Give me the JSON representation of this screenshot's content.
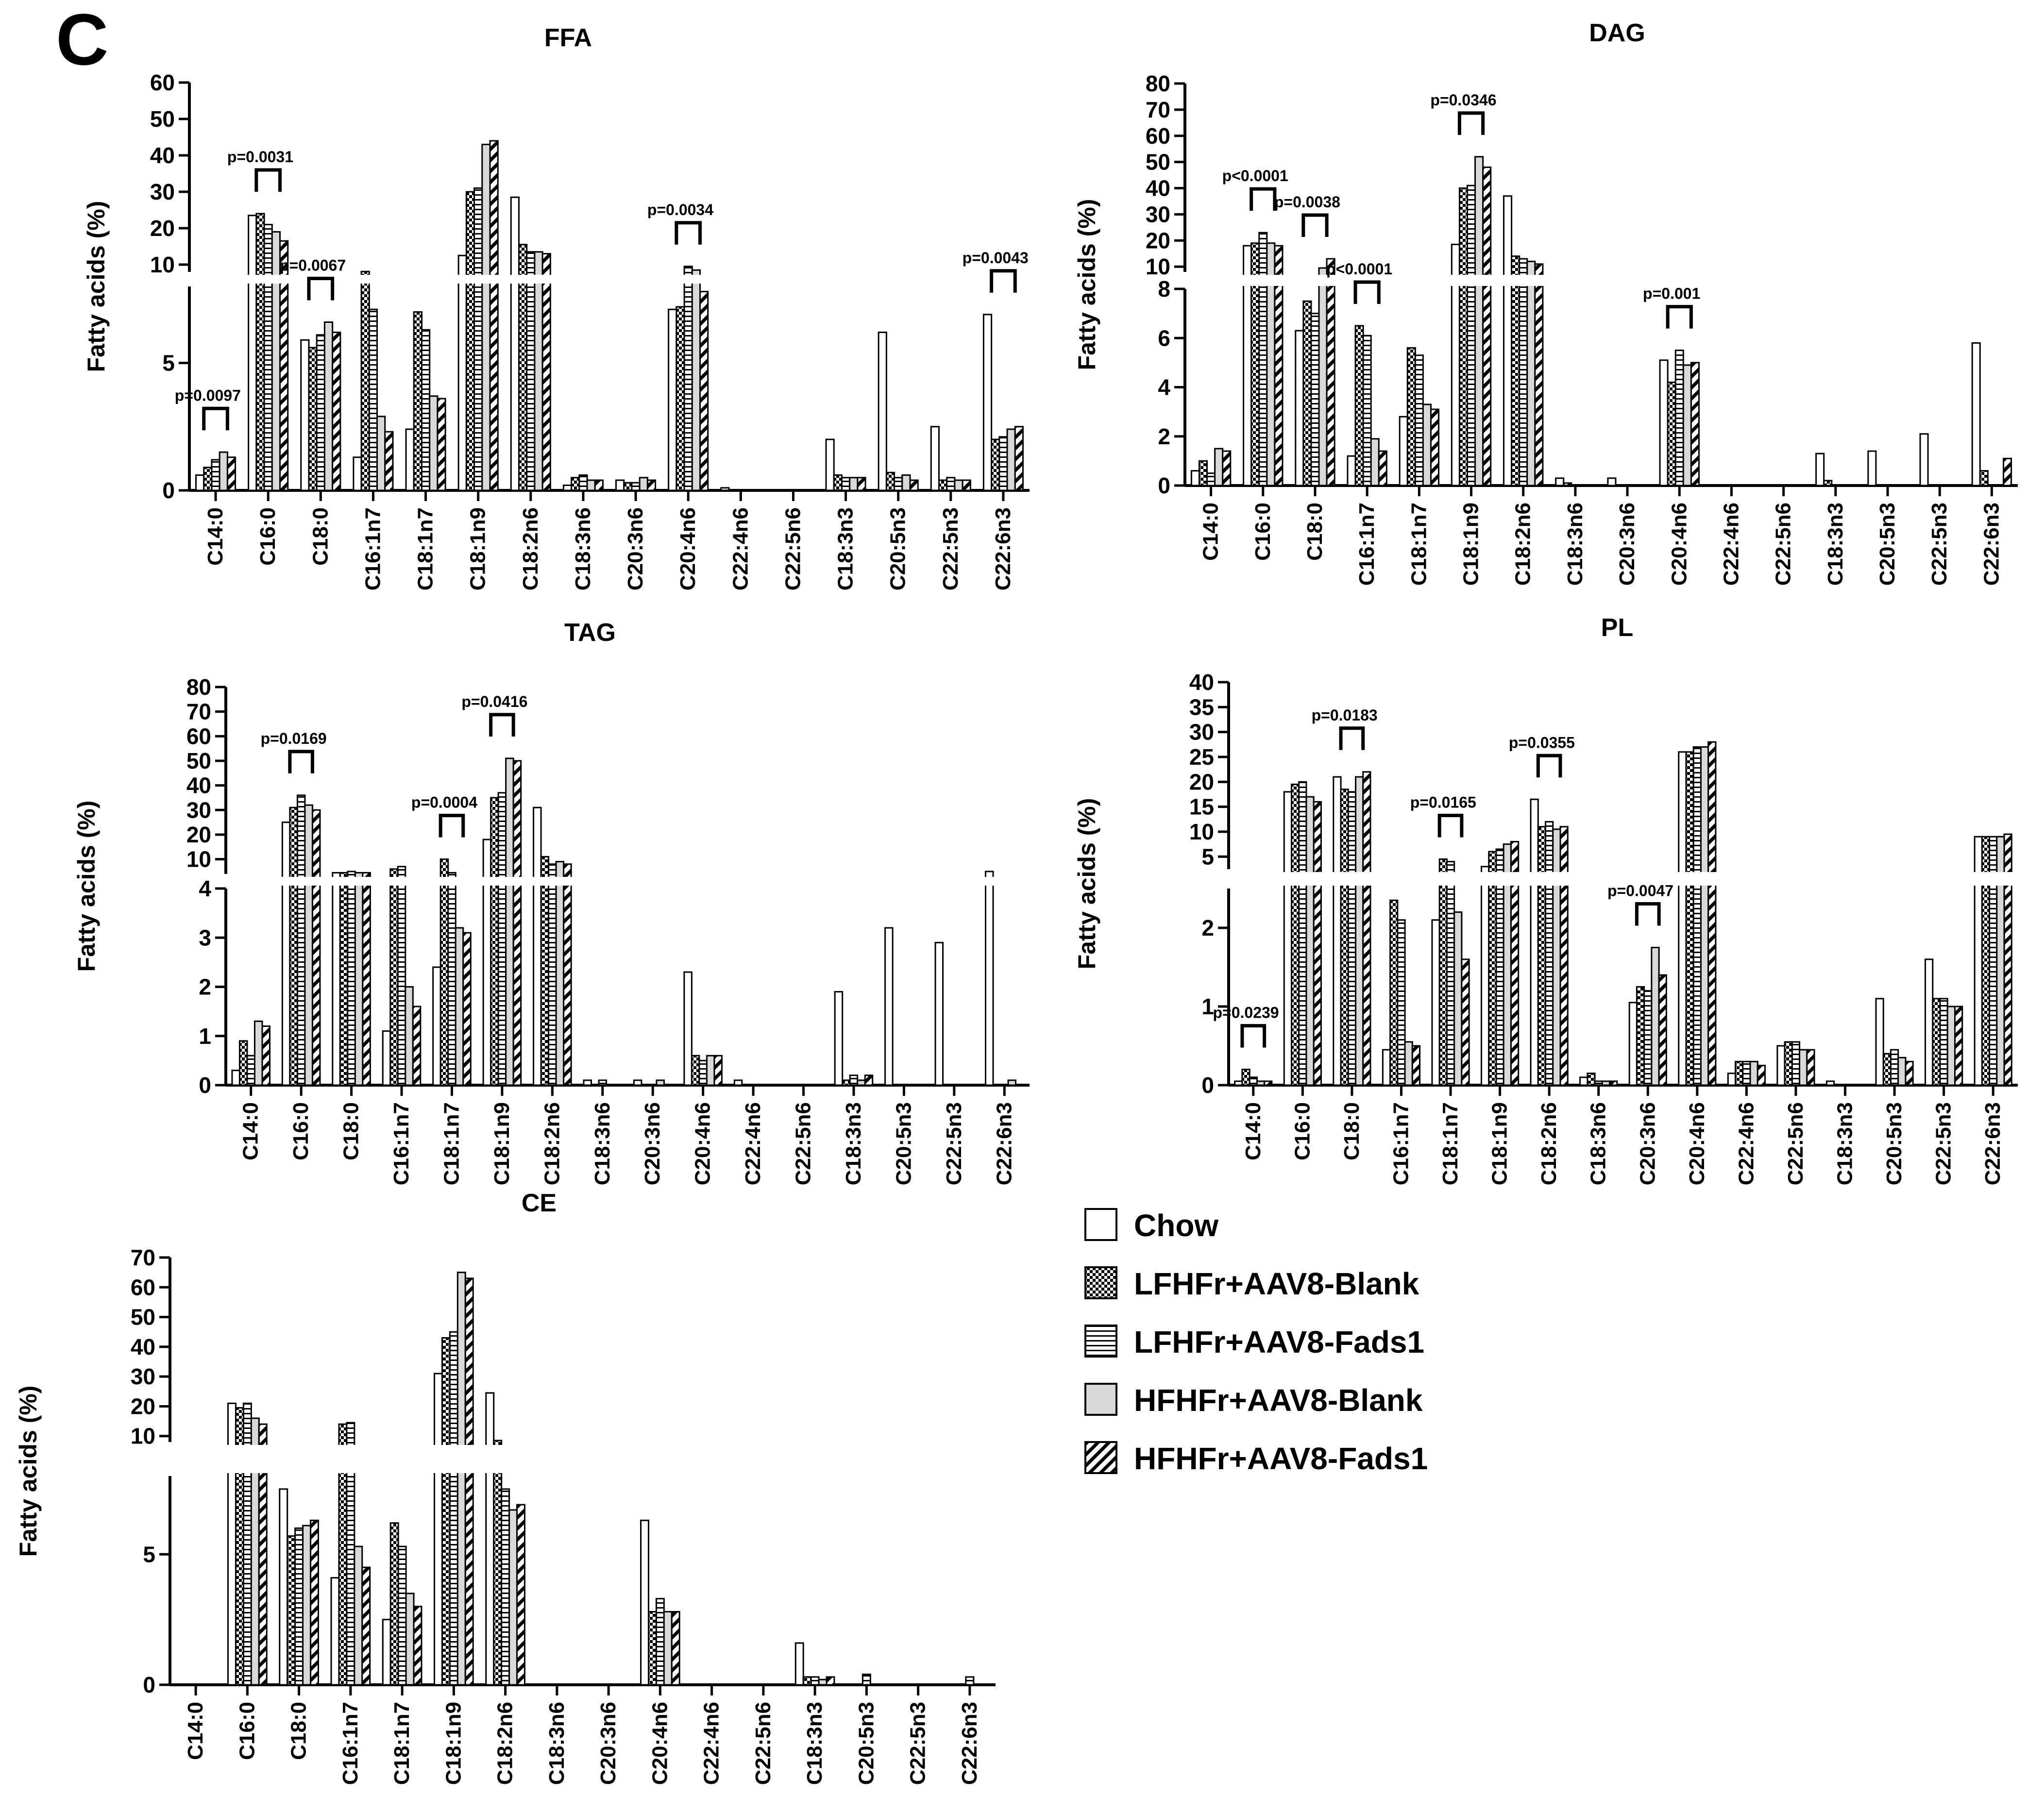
{
  "figure_label": "C",
  "legend": [
    {
      "name": "Chow",
      "pattern": "open"
    },
    {
      "name": "LFHFr+AAV8-Blank",
      "pattern": "checker"
    },
    {
      "name": "LFHFr+AAV8-Fads1",
      "pattern": "hstripe"
    },
    {
      "name": "HFHFr+AAV8-Blank",
      "pattern": "grey"
    },
    {
      "name": "HFHFr+AAV8-Fads1",
      "pattern": "diag"
    }
  ],
  "colors": {
    "ink": "#000000",
    "grey_fill": "#d9d9d9",
    "background": "#ffffff"
  },
  "chart_data": [
    {
      "type": "bar",
      "title": "FFA",
      "ylabel": "Fatty acids (%)",
      "categories": [
        "C14:0",
        "C16:0",
        "C18:0",
        "C16:1n7",
        "C18:1n7",
        "C18:1n9",
        "C18:2n6",
        "C18:3n6",
        "C20:3n6",
        "C20:4n6",
        "C22:4n6",
        "C22:5n6",
        "C18:3n3",
        "C20:5n3",
        "C22:5n3",
        "C22:6n3"
      ],
      "axis_break": {
        "lower_range": [
          0,
          8
        ],
        "lower_ticks": [
          "0",
          "5"
        ],
        "upper_range": [
          8,
          60
        ],
        "upper_ticks": [
          "10",
          "20",
          "30",
          "40",
          "50",
          "60"
        ]
      },
      "series": [
        {
          "name": "Chow",
          "values": [
            0.6,
            23.5,
            5.9,
            1.3,
            2.4,
            12.5,
            28.5,
            0.2,
            0.4,
            7.1,
            0.1,
            0,
            2.0,
            6.2,
            2.5,
            6.9
          ]
        },
        {
          "name": "LFHFr+AAV8-Blank",
          "values": [
            0.9,
            24,
            5.6,
            8.1,
            7.0,
            30,
            15.5,
            0.5,
            0.3,
            7.2,
            0,
            0,
            0.6,
            0.7,
            0.4,
            2.0
          ]
        },
        {
          "name": "LFHFr+AAV8-Fads1",
          "values": [
            1.2,
            21,
            6.1,
            7.1,
            6.3,
            31,
            13.5,
            0.6,
            0.3,
            9.5,
            0,
            0,
            0.5,
            0.5,
            0.5,
            2.1
          ]
        },
        {
          "name": "HFHFr+AAV8-Blank",
          "values": [
            1.5,
            19,
            6.6,
            2.9,
            3.7,
            43,
            13.5,
            0.4,
            0.5,
            8.5,
            0,
            0,
            0.5,
            0.6,
            0.4,
            2.4
          ]
        },
        {
          "name": "HFHFr+AAV8-Fads1",
          "values": [
            1.3,
            16.5,
            6.2,
            2.3,
            3.6,
            44,
            13,
            0.4,
            0.4,
            7.8,
            0,
            0,
            0.5,
            0.4,
            0.4,
            2.5
          ]
        }
      ],
      "annotations": [
        {
          "category": "C14:0",
          "text": "p=0.0097"
        },
        {
          "category": "C16:0",
          "text": "p=0.0031"
        },
        {
          "category": "C18:0",
          "text": "p=0.0067"
        },
        {
          "category": "C20:4n6",
          "text": "p=0.0034"
        },
        {
          "category": "C22:6n3",
          "text": "p=0.0043"
        }
      ]
    },
    {
      "type": "bar",
      "title": "DAG",
      "ylabel": "Fatty acids (%)",
      "categories": [
        "C14:0",
        "C16:0",
        "C18:0",
        "C16:1n7",
        "C18:1n7",
        "C18:1n9",
        "C18:2n6",
        "C18:3n6",
        "C20:3n6",
        "C20:4n6",
        "C22:4n6",
        "C22:5n6",
        "C18:3n3",
        "C20:5n3",
        "C22:5n3",
        "C22:6n3"
      ],
      "axis_break": {
        "lower_range": [
          0,
          8
        ],
        "lower_ticks": [
          "0",
          "2",
          "4",
          "6",
          "8"
        ],
        "upper_range": [
          8,
          80
        ],
        "upper_ticks": [
          "10",
          "20",
          "30",
          "40",
          "50",
          "60",
          "70",
          "80"
        ]
      },
      "series": [
        {
          "name": "Chow",
          "values": [
            0.6,
            18,
            6.3,
            1.2,
            2.8,
            18.5,
            37,
            0.3,
            0.3,
            5.1,
            0,
            0,
            1.3,
            1.4,
            2.1,
            5.8
          ]
        },
        {
          "name": "LFHFr+AAV8-Blank",
          "values": [
            1.0,
            19,
            7.5,
            6.5,
            5.6,
            40,
            14,
            0.1,
            0,
            4.2,
            0,
            0,
            0.2,
            0,
            0,
            0.6
          ]
        },
        {
          "name": "LFHFr+AAV8-Fads1",
          "values": [
            0.5,
            23,
            7.0,
            6.1,
            5.3,
            41,
            13,
            0,
            0,
            5.5,
            0,
            0,
            0,
            0,
            0,
            0
          ]
        },
        {
          "name": "HFHFr+AAV8-Blank",
          "values": [
            1.5,
            19,
            9.5,
            1.9,
            3.3,
            52,
            12,
            0,
            0,
            4.9,
            0,
            0,
            0,
            0,
            0,
            0
          ]
        },
        {
          "name": "HFHFr+AAV8-Fads1",
          "values": [
            1.4,
            18,
            13,
            1.4,
            3.1,
            48,
            11,
            0,
            0,
            5.0,
            0,
            0,
            0,
            0,
            0,
            1.1
          ]
        }
      ],
      "annotations": [
        {
          "category": "C16:0",
          "text": "p<0.0001"
        },
        {
          "category": "C18:0",
          "text": "p=0.0038"
        },
        {
          "category": "C16:1n7",
          "text": "p<0.0001"
        },
        {
          "category": "C18:1n9",
          "text": "p=0.0346"
        },
        {
          "category": "C20:4n6",
          "text": "p=0.001"
        }
      ]
    },
    {
      "type": "bar",
      "title": "TAG",
      "ylabel": "Fatty acids (%)",
      "categories": [
        "C14:0",
        "C16:0",
        "C18:0",
        "C16:1n7",
        "C18:1n7",
        "C18:1n9",
        "C18:2n6",
        "C18:3n6",
        "C20:3n6",
        "C20:4n6",
        "C22:4n6",
        "C22:5n6",
        "C18:3n3",
        "C20:5n3",
        "C22:5n3",
        "C22:6n3"
      ],
      "axis_break": {
        "lower_range": [
          0,
          4
        ],
        "lower_ticks": [
          "0",
          "1",
          "2",
          "3",
          "4"
        ],
        "upper_range": [
          4,
          80
        ],
        "upper_ticks": [
          "10",
          "20",
          "30",
          "40",
          "50",
          "60",
          "70",
          "80"
        ]
      },
      "series": [
        {
          "name": "Chow",
          "values": [
            0.3,
            25,
            4.5,
            1.1,
            2.4,
            18,
            31,
            0.1,
            0.1,
            2.3,
            0.1,
            0,
            1.9,
            3.2,
            2.9,
            5.0
          ]
        },
        {
          "name": "LFHFr+AAV8-Blank",
          "values": [
            0.9,
            31,
            4.5,
            6.0,
            10,
            35,
            11,
            0,
            0,
            0.6,
            0,
            0,
            0.1,
            0,
            0,
            0
          ]
        },
        {
          "name": "LFHFr+AAV8-Fads1",
          "values": [
            0.6,
            36,
            5.0,
            7.0,
            4.5,
            37,
            8,
            0.1,
            0,
            0.5,
            0,
            0,
            0.2,
            0,
            0,
            0
          ]
        },
        {
          "name": "HFHFr+AAV8-Blank",
          "values": [
            1.3,
            32,
            4.5,
            2.0,
            3.2,
            51,
            9,
            0,
            0.1,
            0.6,
            0,
            0,
            0.1,
            0,
            0,
            0.1
          ]
        },
        {
          "name": "HFHFr+AAV8-Fads1",
          "values": [
            1.2,
            30,
            4.5,
            1.6,
            3.1,
            50,
            8,
            0,
            0,
            0.6,
            0,
            0,
            0.2,
            0,
            0,
            0
          ]
        }
      ],
      "annotations": [
        {
          "category": "C16:0",
          "text": "p=0.0169"
        },
        {
          "category": "C18:1n7",
          "text": "p=0.0004"
        },
        {
          "category": "C18:1n9",
          "text": "p=0.0416"
        }
      ]
    },
    {
      "type": "bar",
      "title": "PL",
      "ylabel": "Fatty acids (%)",
      "categories": [
        "C14:0",
        "C16:0",
        "C18:0",
        "C16:1n7",
        "C18:1n7",
        "C18:1n9",
        "C18:2n6",
        "C18:3n6",
        "C20:3n6",
        "C20:4n6",
        "C22:4n6",
        "C22:5n6",
        "C18:3n3",
        "C20:5n3",
        "C22:5n3",
        "C22:6n3"
      ],
      "axis_break": {
        "lower_range": [
          0,
          2.5
        ],
        "lower_ticks": [
          "0",
          "1",
          "2"
        ],
        "upper_range": [
          2.5,
          40
        ],
        "upper_ticks": [
          "5",
          "10",
          "15",
          "20",
          "25",
          "30",
          "35",
          "40"
        ]
      },
      "series": [
        {
          "name": "Chow",
          "values": [
            0.05,
            18,
            21,
            0.45,
            2.1,
            3.0,
            16.5,
            0.1,
            1.05,
            26,
            0.15,
            0.5,
            0.05,
            1.1,
            1.6,
            9
          ]
        },
        {
          "name": "LFHFr+AAV8-Blank",
          "values": [
            0.2,
            19.5,
            18.5,
            2.35,
            4.5,
            6,
            11,
            0.15,
            1.25,
            26,
            0.3,
            0.55,
            0,
            0.4,
            1.1,
            9
          ]
        },
        {
          "name": "LFHFr+AAV8-Fads1",
          "values": [
            0.1,
            20,
            18,
            2.1,
            4,
            6.5,
            12,
            0.05,
            1.2,
            27,
            0.3,
            0.55,
            0,
            0.45,
            1.1,
            9
          ]
        },
        {
          "name": "HFHFr+AAV8-Blank",
          "values": [
            0.05,
            17,
            21,
            0.55,
            2.2,
            7.5,
            10.5,
            0.05,
            1.75,
            27,
            0.3,
            0.45,
            0,
            0.35,
            1.0,
            9
          ]
        },
        {
          "name": "HFHFr+AAV8-Fads1",
          "values": [
            0.05,
            16,
            22,
            0.5,
            1.6,
            8,
            11,
            0.05,
            1.4,
            28,
            0.25,
            0.45,
            0,
            0.3,
            1.0,
            9.5
          ]
        }
      ],
      "annotations": [
        {
          "category": "C14:0",
          "text": "p=0.0239"
        },
        {
          "category": "C18:0",
          "text": "p=0.0183"
        },
        {
          "category": "C18:1n7",
          "text": "p=0.0165"
        },
        {
          "category": "C18:2n6",
          "text": "p=0.0355"
        },
        {
          "category": "C20:3n6",
          "text": "p=0.0047"
        }
      ]
    },
    {
      "type": "bar",
      "title": "CE",
      "ylabel": "Fatty acids (%)",
      "categories": [
        "C14:0",
        "C16:0",
        "C18:0",
        "C16:1n7",
        "C18:1n7",
        "C18:1n9",
        "C18:2n6",
        "C18:3n6",
        "C20:3n6",
        "C20:4n6",
        "C22:4n6",
        "C22:5n6",
        "C18:3n3",
        "C20:5n3",
        "C22:5n3",
        "C22:6n3"
      ],
      "axis_break": {
        "lower_range": [
          0,
          8
        ],
        "lower_ticks": [
          "0",
          "5"
        ],
        "upper_range": [
          8,
          70
        ],
        "upper_ticks": [
          "10",
          "20",
          "30",
          "40",
          "50",
          "60",
          "70"
        ]
      },
      "series": [
        {
          "name": "Chow",
          "values": [
            0,
            21,
            7.5,
            4.1,
            2.5,
            31,
            24.5,
            0,
            0,
            6.3,
            0,
            0,
            1.6,
            0,
            0,
            0
          ]
        },
        {
          "name": "LFHFr+AAV8-Blank",
          "values": [
            0,
            19.5,
            5.7,
            14,
            6.2,
            43,
            8.5,
            0,
            0,
            2.8,
            0,
            0,
            0.3,
            0,
            0,
            0
          ]
        },
        {
          "name": "LFHFr+AAV8-Fads1",
          "values": [
            0,
            21,
            6.0,
            14.5,
            5.3,
            45,
            7.5,
            0,
            0,
            3.3,
            0,
            0,
            0.3,
            0.4,
            0,
            0.3
          ]
        },
        {
          "name": "HFHFr+AAV8-Blank",
          "values": [
            0,
            16,
            6.1,
            5.3,
            3.5,
            65,
            6.7,
            0,
            0,
            2.8,
            0,
            0,
            0.2,
            0,
            0,
            0
          ]
        },
        {
          "name": "HFHFr+AAV8-Fads1",
          "values": [
            0,
            14,
            6.3,
            4.5,
            3.0,
            63,
            6.9,
            0,
            0,
            2.8,
            0,
            0,
            0.3,
            0,
            0,
            0
          ]
        }
      ],
      "annotations": []
    }
  ]
}
